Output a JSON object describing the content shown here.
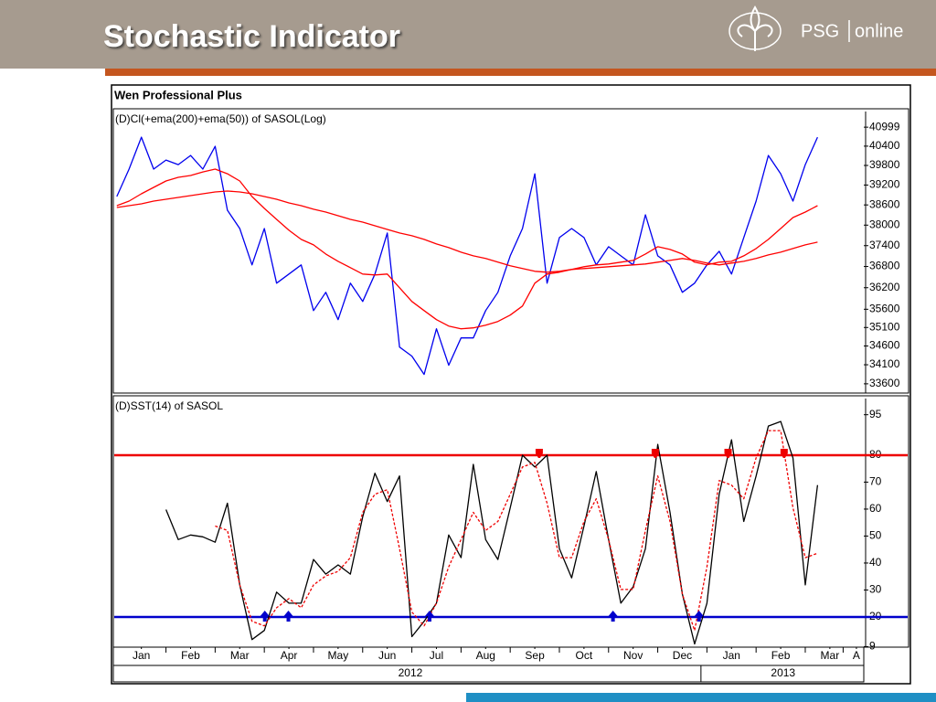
{
  "header": {
    "title": "Stochastic Indicator",
    "logo": {
      "brand": "PSG",
      "product": "online"
    }
  },
  "window_title": "Wen Professional Plus",
  "chart_data": [
    {
      "type": "line",
      "title": "(D)Cl(+ema(200)+ema(50)) of SASOL(Log)",
      "log_scale": true,
      "xlim": [
        -0.07,
        15.19
      ],
      "x": [
        0,
        0.25,
        0.5,
        0.75,
        1,
        1.25,
        1.5,
        1.75,
        2,
        2.25,
        2.5,
        2.75,
        3,
        3.25,
        3.5,
        3.75,
        4,
        4.25,
        4.5,
        4.75,
        5,
        5.25,
        5.5,
        5.75,
        6,
        6.25,
        6.5,
        6.75,
        7,
        7.25,
        7.5,
        7.75,
        8,
        8.25,
        8.5,
        8.75,
        9,
        9.25,
        9.5,
        9.75,
        10,
        10.25,
        10.5,
        10.75,
        11,
        11.25,
        11.5,
        11.75,
        12,
        12.25,
        12.5,
        12.75,
        13,
        13.25,
        13.5,
        13.75,
        14,
        14.25
      ],
      "ylim": [
        33360,
        41500
      ],
      "yticks": [
        40999,
        40400,
        39800,
        39200,
        38600,
        38000,
        37400,
        36800,
        36200,
        35600,
        35100,
        34600,
        34100,
        33600
      ],
      "series": [
        {
          "color": "#0000ee",
          "values": [
            38851,
            39686,
            40681,
            39686,
            39967,
            39826,
            40109,
            39686,
            40394,
            38442,
            37901,
            36845,
            37901,
            36327,
            36585,
            36845,
            35564,
            36071,
            35313,
            36327,
            35817,
            36585,
            37768,
            34571,
            34328,
            33845,
            35064,
            34086,
            34817,
            34817,
            35564,
            36071,
            37106,
            37901,
            39545,
            36327,
            37634,
            37901,
            37634,
            36845,
            37370,
            37106,
            36845,
            38306,
            37106,
            36845,
            36071,
            36327,
            36845,
            37238,
            36585,
            37634,
            38715,
            40109,
            39545,
            38715,
            39826,
            40681
          ]
        },
        {
          "color": "#ff0000",
          "values": [
            38579,
            38715,
            38934,
            39128,
            39323,
            39434,
            39490,
            39601,
            39686,
            39545,
            39323,
            38851,
            38497,
            38171,
            37848,
            37581,
            37423,
            37159,
            36949,
            36767,
            36585,
            36559,
            36585,
            36199,
            35817,
            35564,
            35313,
            35139,
            35064,
            35089,
            35164,
            35263,
            35439,
            35690,
            36327,
            36585,
            36637,
            36715,
            36793,
            36845,
            36871,
            36923,
            36975,
            37159,
            37370,
            37291,
            37159,
            36923,
            36845,
            36923,
            36949,
            37106,
            37317,
            37581,
            37901,
            38224,
            38388,
            38579
          ]
        },
        {
          "color": "#ff0000",
          "values": [
            38524,
            38579,
            38633,
            38715,
            38770,
            38824,
            38879,
            38934,
            38989,
            39017,
            38989,
            38934,
            38851,
            38770,
            38660,
            38579,
            38470,
            38388,
            38279,
            38171,
            38090,
            37982,
            37874,
            37768,
            37688,
            37581,
            37449,
            37344,
            37212,
            37106,
            37028,
            36923,
            36819,
            36741,
            36663,
            36637,
            36663,
            36715,
            36741,
            36767,
            36793,
            36819,
            36845,
            36871,
            36923,
            36975,
            37028,
            36975,
            36897,
            36845,
            36897,
            36949,
            37028,
            37132,
            37212,
            37317,
            37423,
            37502
          ]
        }
      ]
    },
    {
      "type": "line",
      "title": "(D)SST(14) of SASOL",
      "xlim": [
        -0.07,
        15.19
      ],
      "x": [
        0,
        0.25,
        0.5,
        0.75,
        1,
        1.25,
        1.5,
        1.75,
        2,
        2.25,
        2.5,
        2.75,
        3,
        3.25,
        3.5,
        3.75,
        4,
        4.25,
        4.5,
        4.75,
        5,
        5.25,
        5.5,
        5.75,
        6,
        6.25,
        6.5,
        6.75,
        7,
        7.25,
        7.5,
        7.75,
        8,
        8.25,
        8.5,
        8.75,
        9,
        9.25,
        9.5,
        9.75,
        10,
        10.25,
        10.5,
        10.75,
        11,
        11.25,
        11.5,
        11.75,
        12,
        12.25,
        12.5,
        12.75,
        13,
        13.25,
        13.5,
        13.75,
        14,
        14.25
      ],
      "xticks": [
        {
          "value": 0.5,
          "label": "Jan"
        },
        {
          "value": 1.5,
          "label": "Feb"
        },
        {
          "value": 2.5,
          "label": "Mar"
        },
        {
          "value": 3.5,
          "label": "Apr"
        },
        {
          "value": 4.5,
          "label": "May"
        },
        {
          "value": 5.5,
          "label": "Jun"
        },
        {
          "value": 6.5,
          "label": "Jul"
        },
        {
          "value": 7.5,
          "label": "Aug"
        },
        {
          "value": 8.5,
          "label": "Sep"
        },
        {
          "value": 9.5,
          "label": "Oct"
        },
        {
          "value": 10.5,
          "label": "Nov"
        },
        {
          "value": 11.5,
          "label": "Dec"
        },
        {
          "value": 12.5,
          "label": "Jan"
        },
        {
          "value": 13.5,
          "label": "Feb"
        },
        {
          "value": 14.5,
          "label": "Mar"
        },
        {
          "value": 15.04,
          "label": "A"
        }
      ],
      "year_ticks": [
        {
          "value": 5.97,
          "label": "2012"
        },
        {
          "value": 13.55,
          "label": "2013"
        }
      ],
      "ylim": [
        8.8,
        101
      ],
      "yticks": [
        95,
        80,
        70,
        60,
        50,
        40,
        30,
        20,
        9
      ],
      "levels": [
        {
          "value": 80,
          "color": "#ee0000"
        },
        {
          "value": 20,
          "color": "#0000cc"
        }
      ],
      "series": [
        {
          "color": "#000000",
          "values": [
            null,
            null,
            null,
            null,
            59.8,
            48.7,
            50.4,
            49.7,
            47.7,
            62.2,
            31.9,
            11.6,
            15.0,
            29.2,
            25.1,
            25.1,
            41.3,
            35.9,
            39.3,
            35.9,
            57.1,
            73.3,
            62.8,
            72.3,
            12.7,
            18.4,
            25.1,
            50.4,
            42.0,
            76.6,
            48.7,
            41.3,
            60.5,
            80.0,
            75.6,
            80.0,
            45.3,
            34.5,
            53.7,
            73.9,
            48.7,
            25.1,
            31.2,
            45.3,
            84.0,
            58.8,
            28.5,
            10.0,
            25.1,
            65.5,
            85.7,
            55.4,
            72.3,
            90.8,
            92.5,
            79.0,
            31.9,
            68.9
          ]
        },
        {
          "color": "#ee0000",
          "style": "dashed",
          "values": [
            null,
            null,
            null,
            null,
            null,
            null,
            null,
            null,
            53.7,
            52.1,
            31.9,
            18.4,
            16.7,
            23.4,
            26.8,
            23.4,
            31.9,
            35.2,
            36.9,
            42.0,
            58.8,
            65.5,
            67.2,
            45.3,
            21.8,
            16.7,
            25.1,
            38.6,
            48.7,
            58.8,
            52.1,
            55.4,
            65.5,
            75.6,
            77.3,
            62.2,
            42.0,
            42.0,
            55.4,
            63.8,
            48.7,
            30.2,
            30.2,
            52.1,
            72.3,
            55.4,
            28.5,
            15.0,
            38.6,
            70.6,
            68.9,
            63.8,
            79.0,
            89.1,
            89.1,
            60.5,
            42.0,
            43.6
          ]
        }
      ],
      "buy_signals": [
        3.01,
        3.49,
        6.36,
        10.09,
        11.84
      ],
      "sell_signals": [
        8.59,
        10.95,
        12.43,
        13.57
      ]
    }
  ]
}
